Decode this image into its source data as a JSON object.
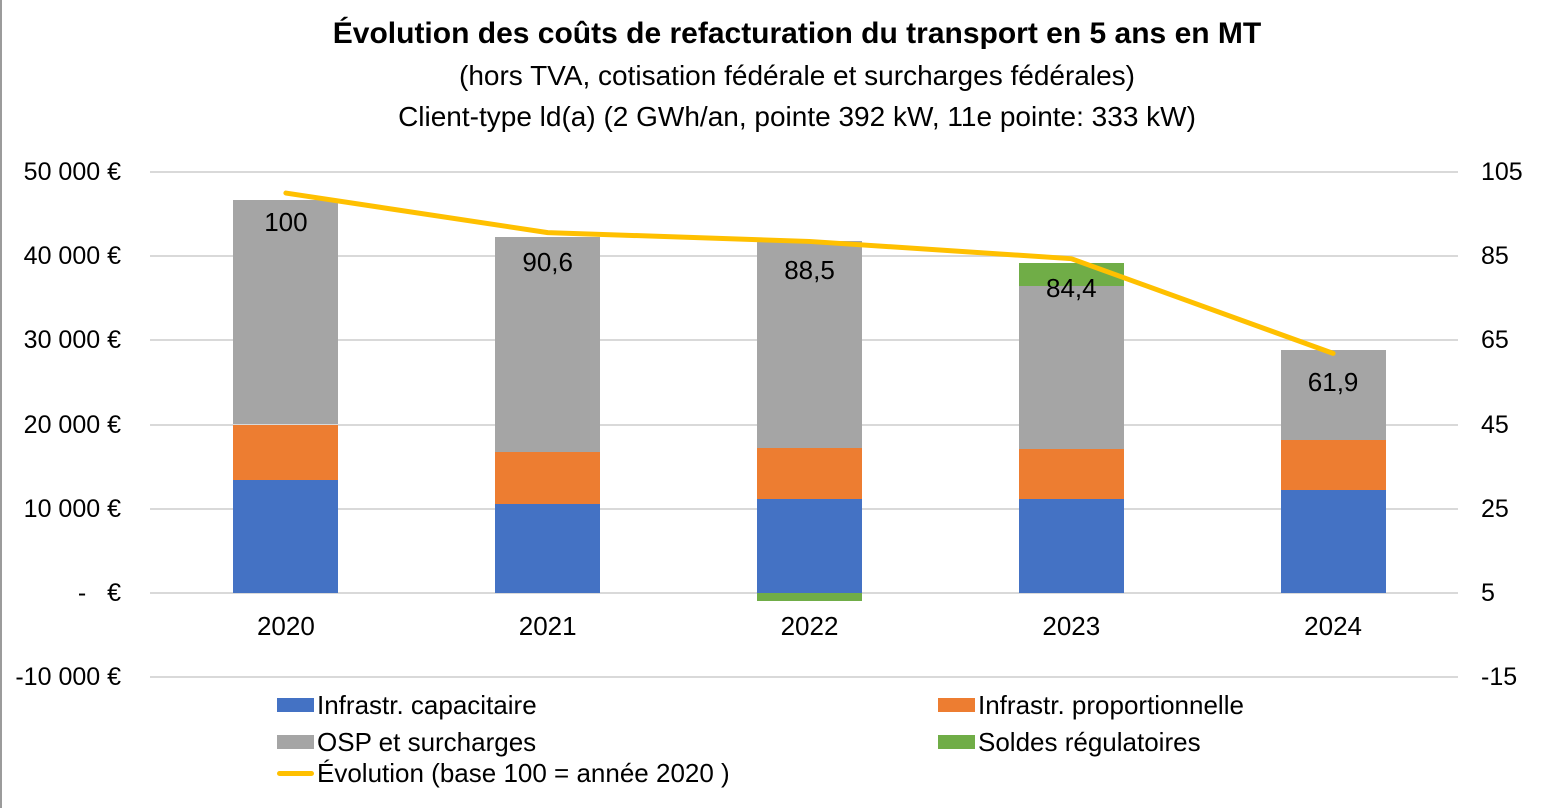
{
  "chart_data": {
    "type": "combo-stacked-bar-line",
    "title": "Évolution des coûts de refacturation du transport en 5 ans en MT",
    "subtitle1": "(hors TVA, cotisation fédérale et surcharges fédérales)",
    "subtitle2": "Client-type ld(a) (2 GWh/an, pointe 392 kW, 11e pointe: 333 kW)",
    "categories": [
      "2020",
      "2021",
      "2022",
      "2023",
      "2024"
    ],
    "bar_series": [
      {
        "id": "infrastr-capacitaire",
        "name": "Infrastr. capacitaire",
        "color": "#4472C4",
        "values": [
          13450,
          10550,
          11100,
          11100,
          12200
        ]
      },
      {
        "id": "infrastr-proportionnelle",
        "name": "Infrastr. proportionnelle",
        "color": "#ED7D31",
        "values": [
          6550,
          6200,
          6100,
          6000,
          6000
        ]
      },
      {
        "id": "osp-et-surcharges",
        "name": "OSP et surcharges",
        "color": "#A5A5A5",
        "values": [
          26700,
          25500,
          24600,
          19300,
          10600
        ]
      },
      {
        "id": "soldes-regulatoires",
        "name": "Soldes régulatoires",
        "color": "#70AD47",
        "values": [
          0,
          0,
          -950,
          2800,
          0
        ]
      }
    ],
    "line_series": {
      "id": "evolution",
      "name": "Évolution (base 100 = année 2020 )",
      "color": "#FFC000",
      "axis": "right",
      "values": [
        100,
        90.6,
        88.5,
        84.4,
        61.9
      ],
      "labels": [
        "100",
        "90,6",
        "88,5",
        "84,4",
        "61,9"
      ]
    },
    "left_axis": {
      "ticks": [
        "50 000 €",
        "40 000 €",
        "30 000 €",
        "20 000 €",
        "10 000 €",
        "-   €",
        "-10 000 €"
      ],
      "max": 50000,
      "min": -10000,
      "step": 10000
    },
    "right_axis": {
      "ticks": [
        "105",
        "85",
        "65",
        "45",
        "25",
        "5",
        "-15"
      ],
      "max": 105,
      "min": -15,
      "step": 20
    },
    "grid": true,
    "legend_position": "bottom",
    "bar_stacking": "stacked, negatives plotted below zero line"
  }
}
